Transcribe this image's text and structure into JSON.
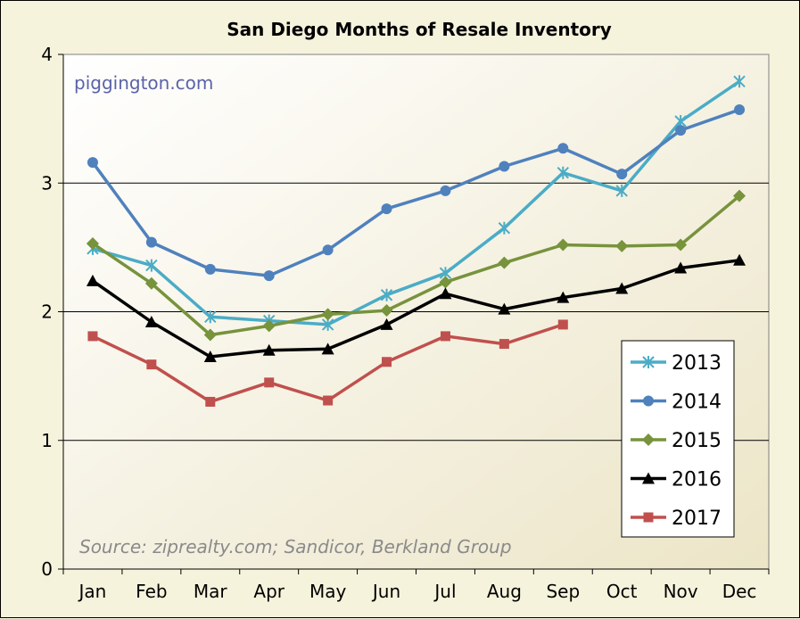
{
  "chart_data": {
    "type": "line",
    "title": "San Diego Months of Resale Inventory",
    "watermark": "piggington.com",
    "source": "Source: ziprealty.com; Sandicor, Berkland Group",
    "categories": [
      "Jan",
      "Feb",
      "Mar",
      "Apr",
      "May",
      "Jun",
      "Jul",
      "Aug",
      "Sep",
      "Oct",
      "Nov",
      "Dec"
    ],
    "ylim": [
      0,
      4
    ],
    "yticks": [
      "0",
      "1",
      "2",
      "3",
      "4"
    ],
    "grid": "horizontal",
    "legend_position": "right",
    "series": [
      {
        "name": "2013",
        "color": "#4bacc6",
        "marker": "asterisk",
        "values": [
          2.49,
          2.36,
          1.96,
          1.93,
          1.9,
          2.13,
          2.3,
          2.65,
          3.08,
          2.94,
          3.48,
          3.79
        ]
      },
      {
        "name": "2014",
        "color": "#4f81bd",
        "marker": "circle",
        "values": [
          3.16,
          2.54,
          2.33,
          2.28,
          2.48,
          2.8,
          2.94,
          3.13,
          3.27,
          3.07,
          3.41,
          3.57
        ]
      },
      {
        "name": "2015",
        "color": "#77933c",
        "marker": "diamond",
        "values": [
          2.53,
          2.22,
          1.82,
          1.89,
          1.98,
          2.01,
          2.23,
          2.38,
          2.52,
          2.51,
          2.52,
          2.9
        ]
      },
      {
        "name": "2016",
        "color": "#000000",
        "marker": "triangle",
        "values": [
          2.24,
          1.92,
          1.65,
          1.7,
          1.71,
          1.9,
          2.14,
          2.02,
          2.11,
          2.18,
          2.34,
          2.4
        ]
      },
      {
        "name": "2017",
        "color": "#c0504d",
        "marker": "square",
        "values": [
          1.81,
          1.59,
          1.3,
          1.45,
          1.31,
          1.61,
          1.81,
          1.75,
          1.9,
          null,
          null,
          null
        ]
      }
    ]
  }
}
